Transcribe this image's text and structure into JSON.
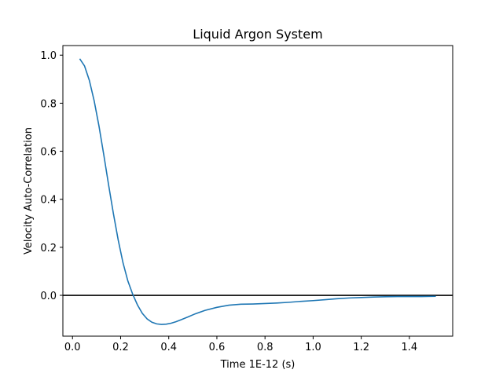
{
  "chart_data": {
    "type": "line",
    "title": "Liquid Argon System",
    "xlabel": "Time 1E-12 (s)",
    "ylabel": "Velocity Auto-Correlation",
    "xlim": [
      -0.04,
      1.58
    ],
    "ylim": [
      -0.17,
      1.04
    ],
    "xticks": [
      0.0,
      0.2,
      0.4,
      0.6,
      0.8,
      1.0,
      1.2,
      1.4
    ],
    "xtick_labels": [
      "0.0",
      "0.2",
      "0.4",
      "0.6",
      "0.8",
      "1.0",
      "1.2",
      "1.4"
    ],
    "yticks": [
      0.0,
      0.2,
      0.4,
      0.6,
      0.8,
      1.0
    ],
    "ytick_labels": [
      "0.0",
      "0.2",
      "0.4",
      "0.6",
      "0.8",
      "1.0"
    ],
    "grid": false,
    "reference_line": {
      "y": 0.0,
      "color": "#000000"
    },
    "series": [
      {
        "color": "#1f77b4",
        "x": [
          0.03,
          0.05,
          0.07,
          0.09,
          0.11,
          0.13,
          0.15,
          0.17,
          0.19,
          0.21,
          0.23,
          0.25,
          0.27,
          0.29,
          0.31,
          0.33,
          0.35,
          0.37,
          0.39,
          0.41,
          0.43,
          0.45,
          0.48,
          0.51,
          0.55,
          0.6,
          0.65,
          0.7,
          0.75,
          0.8,
          0.85,
          0.9,
          0.95,
          1.0,
          1.05,
          1.1,
          1.15,
          1.2,
          1.25,
          1.3,
          1.35,
          1.4,
          1.45,
          1.51
        ],
        "y": [
          0.985,
          0.955,
          0.895,
          0.81,
          0.705,
          0.585,
          0.46,
          0.34,
          0.23,
          0.135,
          0.06,
          0.005,
          -0.04,
          -0.075,
          -0.098,
          -0.112,
          -0.119,
          -0.121,
          -0.12,
          -0.116,
          -0.11,
          -0.102,
          -0.09,
          -0.077,
          -0.063,
          -0.05,
          -0.041,
          -0.037,
          -0.036,
          -0.034,
          -0.032,
          -0.029,
          -0.025,
          -0.022,
          -0.018,
          -0.014,
          -0.011,
          -0.009,
          -0.007,
          -0.006,
          -0.005,
          -0.005,
          -0.005,
          -0.004
        ]
      }
    ]
  }
}
